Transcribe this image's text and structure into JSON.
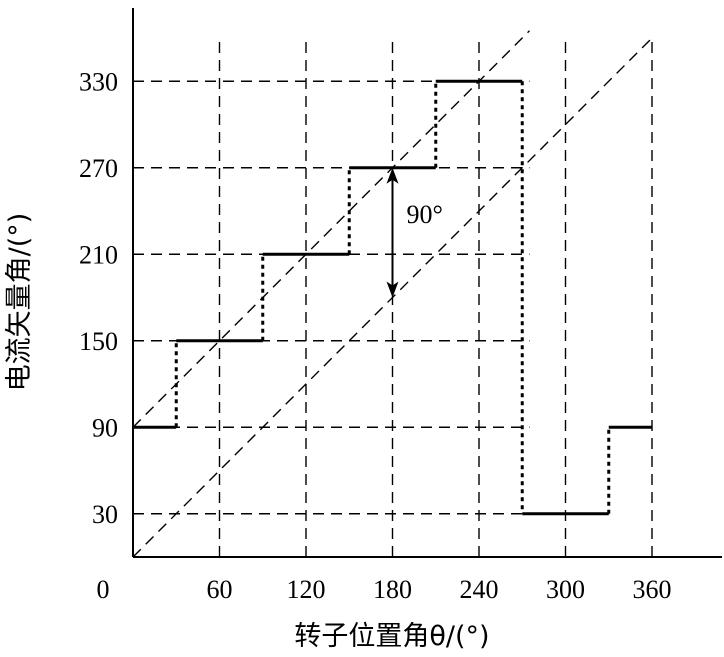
{
  "chart_data": {
    "type": "line",
    "title": "",
    "xlabel": "转子位置角θ/(°)",
    "ylabel": "电流矢量角/(°)",
    "origin_label": "0",
    "x_ticks": [
      60,
      120,
      180,
      240,
      300,
      360
    ],
    "y_ticks": [
      30,
      90,
      150,
      210,
      270,
      330
    ],
    "xlim": [
      0,
      400
    ],
    "ylim": [
      0,
      400
    ],
    "grid": true,
    "series": [
      {
        "style": "step",
        "horizontal_segments": [
          {
            "x": [
              0,
              30
            ],
            "y": 90
          },
          {
            "x": [
              30,
              90
            ],
            "y": 150
          },
          {
            "x": [
              90,
              150
            ],
            "y": 210
          },
          {
            "x": [
              150,
              210
            ],
            "y": 270
          },
          {
            "x": [
              210,
              270
            ],
            "y": 330
          },
          {
            "x": [
              270,
              330
            ],
            "y": 30
          },
          {
            "x": [
              330,
              360
            ],
            "y": 90
          }
        ],
        "vertical_transitions": [
          {
            "x": 30,
            "y": [
              90,
              150
            ]
          },
          {
            "x": 90,
            "y": [
              150,
              210
            ]
          },
          {
            "x": 150,
            "y": [
              210,
              270
            ]
          },
          {
            "x": 210,
            "y": [
              270,
              330
            ]
          },
          {
            "x": 270,
            "y": [
              330,
              30
            ]
          },
          {
            "x": 330,
            "y": [
              30,
              90
            ]
          }
        ]
      },
      {
        "style": "dashed-diagonal",
        "x": [
          0,
          275
        ],
        "y": [
          90,
          365
        ]
      },
      {
        "style": "dashed-diagonal",
        "x": [
          0,
          360
        ],
        "y": [
          0,
          360
        ]
      }
    ],
    "annotations": [
      {
        "text": "90°",
        "arrow_x": 180,
        "arrow_y": [
          180,
          270
        ]
      }
    ]
  }
}
